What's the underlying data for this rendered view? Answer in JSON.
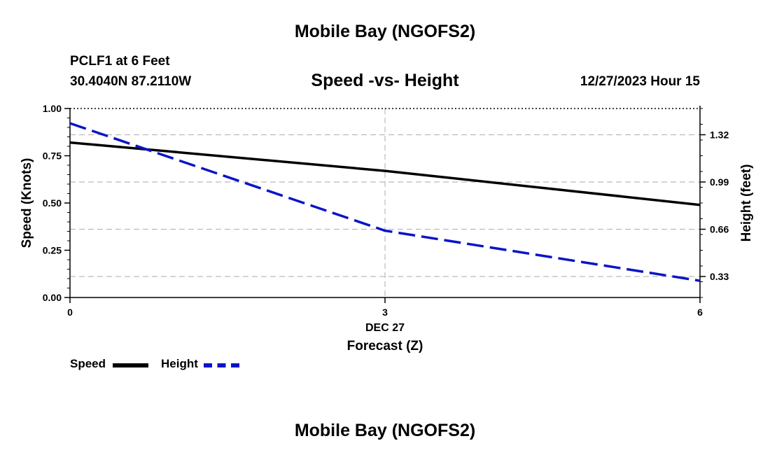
{
  "page_title": "Mobile Bay (NGOFS2)",
  "station": {
    "name": "PCLF1 at 6 Feet",
    "coords": "30.4040N  87.2110W"
  },
  "chart_title": "Speed -vs- Height",
  "timestamp": "12/27/2023 Hour 15",
  "legend": {
    "speed_label": "Speed",
    "height_label": "Height"
  },
  "footer_title": "Mobile Bay (NGOFS2)",
  "colors": {
    "speed": "#000000",
    "height": "#0a14c8",
    "grid": "#bbbbbb"
  },
  "chart_data": {
    "type": "line",
    "x": [
      0,
      3,
      6
    ],
    "x_ticks": [
      "0",
      "3",
      "6"
    ],
    "x_date_label": "DEC 27",
    "xlabel": "Forecast (Z)",
    "xlim": [
      0,
      6
    ],
    "left_axis": {
      "label": "Speed (Knots)",
      "ylim": [
        0,
        1
      ],
      "ticks": [
        0,
        0.25,
        0.5,
        0.75,
        1.0
      ],
      "tick_labels": [
        "0.00",
        "0.25",
        "0.50",
        "0.75",
        "1.00"
      ]
    },
    "right_axis": {
      "label": "Height (feet)",
      "ylim": [
        0.1833,
        1.5033
      ],
      "ticks": [
        0.33,
        0.66,
        0.99,
        1.32
      ],
      "tick_labels": [
        "0.33",
        "0.66",
        "0.99",
        "1.32"
      ]
    },
    "series": [
      {
        "name": "Speed",
        "axis": "left",
        "style": "solid",
        "x": [
          0,
          3,
          6
        ],
        "values": [
          0.82,
          0.67,
          0.49
        ]
      },
      {
        "name": "Height",
        "axis": "right",
        "style": "dashed",
        "x": [
          0,
          3,
          6
        ],
        "values": [
          1.4,
          0.65,
          0.3
        ]
      }
    ],
    "grid": true
  }
}
